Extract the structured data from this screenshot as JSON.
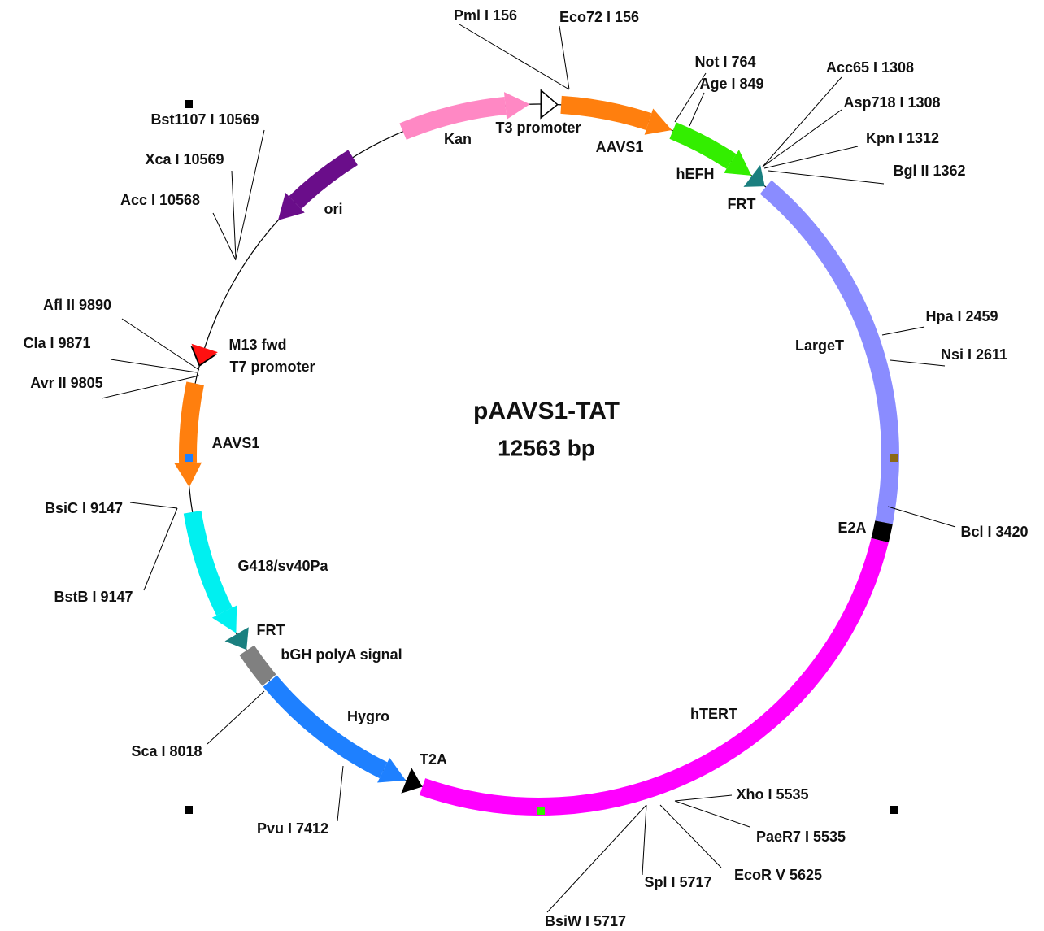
{
  "map": {
    "title": "pAAVS1-TAT",
    "size": "12563 bp",
    "features": [
      {
        "label": "Kan"
      },
      {
        "label": "T3 promoter"
      },
      {
        "label": "AAVS1"
      },
      {
        "label": "hEFH"
      },
      {
        "label": "FRT"
      },
      {
        "label": "LargeT"
      },
      {
        "label": "E2A"
      },
      {
        "label": "hTERT"
      },
      {
        "label": "T2A"
      },
      {
        "label": "Hygro"
      },
      {
        "label": "bGH polyA signal"
      },
      {
        "label": "FRT"
      },
      {
        "label": "G418/sv40Pa"
      },
      {
        "label": "AAVS1"
      },
      {
        "label": "M13 fwd"
      },
      {
        "label": "T7 promoter"
      },
      {
        "label": "ori"
      }
    ],
    "sites": [
      "Pml I 156",
      "Eco72 I 156",
      "Not I 764",
      "Age I 849",
      "Acc65 I 1308",
      "Asp718 I 1308",
      "Kpn I 1312",
      "Bgl II 1362",
      "Hpa I 2459",
      "Nsi I 2611",
      "Bcl I 3420",
      "Xho I 5535",
      "PaeR7 I 5535",
      "EcoR V 5625",
      "Spl I 5717",
      "BsiW I 5717",
      "Pvu I 7412",
      "Sca I 8018",
      "BstB I 9147",
      "BsiC I 9147",
      "Avr II 9805",
      "Cla I 9871",
      "Afl II 9890",
      "Acc I 10568",
      "Xca I 10569",
      "Bst1107 I 10569"
    ]
  }
}
